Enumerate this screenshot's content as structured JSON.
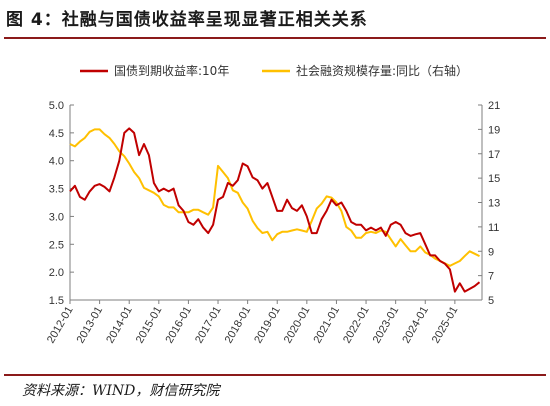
{
  "figure": {
    "title": "图 4：社融与国债收益率呈现显著正相关关系",
    "source": "资料来源：WIND，财信研究院"
  },
  "colors": {
    "series1": "#c00000",
    "series2": "#ffc000",
    "rule": "#8b1a1a",
    "axis": "#7f7f7f"
  },
  "chart_data": {
    "type": "line",
    "title": "",
    "xlabel": "",
    "ylabel_left": "",
    "ylabel_right": "",
    "x_ticks": [
      "2012-01",
      "2013-01",
      "2014-01",
      "2015-01",
      "2016-01",
      "2017-01",
      "2018-01",
      "2019-01",
      "2020-01",
      "2021-01",
      "2022-01",
      "2023-01",
      "2024-01",
      "2025-01"
    ],
    "x_range": [
      "2012-01",
      "2025-12"
    ],
    "y_left": {
      "ticks": [
        "5.0",
        "4.5",
        "4.0",
        "3.5",
        "3.0",
        "2.5",
        "2.0",
        "1.5"
      ],
      "min": 1.5,
      "max": 5.0
    },
    "y_right": {
      "ticks": [
        "21",
        "19",
        "17",
        "15",
        "13",
        "11",
        "9",
        "7",
        "5"
      ],
      "min": 5,
      "max": 21
    },
    "grid": false,
    "legend_position": "top",
    "series": [
      {
        "name": "国债到期收益率:10年",
        "axis": "left",
        "color": "#c00000",
        "points": [
          [
            "2012-01",
            3.45
          ],
          [
            "2012-03",
            3.55
          ],
          [
            "2012-05",
            3.35
          ],
          [
            "2012-07",
            3.3
          ],
          [
            "2012-09",
            3.45
          ],
          [
            "2012-11",
            3.55
          ],
          [
            "2013-01",
            3.58
          ],
          [
            "2013-03",
            3.53
          ],
          [
            "2013-05",
            3.45
          ],
          [
            "2013-07",
            3.7
          ],
          [
            "2013-09",
            4.0
          ],
          [
            "2013-11",
            4.5
          ],
          [
            "2014-01",
            4.58
          ],
          [
            "2014-03",
            4.5
          ],
          [
            "2014-05",
            4.1
          ],
          [
            "2014-07",
            4.3
          ],
          [
            "2014-09",
            4.1
          ],
          [
            "2014-11",
            3.6
          ],
          [
            "2015-01",
            3.45
          ],
          [
            "2015-03",
            3.5
          ],
          [
            "2015-05",
            3.45
          ],
          [
            "2015-07",
            3.5
          ],
          [
            "2015-09",
            3.2
          ],
          [
            "2015-11",
            3.1
          ],
          [
            "2016-01",
            2.9
          ],
          [
            "2016-03",
            2.85
          ],
          [
            "2016-05",
            2.95
          ],
          [
            "2016-07",
            2.8
          ],
          [
            "2016-09",
            2.7
          ],
          [
            "2016-11",
            2.85
          ],
          [
            "2017-01",
            3.3
          ],
          [
            "2017-03",
            3.35
          ],
          [
            "2017-05",
            3.6
          ],
          [
            "2017-07",
            3.55
          ],
          [
            "2017-09",
            3.65
          ],
          [
            "2017-11",
            3.95
          ],
          [
            "2018-01",
            3.9
          ],
          [
            "2018-03",
            3.7
          ],
          [
            "2018-05",
            3.65
          ],
          [
            "2018-07",
            3.5
          ],
          [
            "2018-09",
            3.6
          ],
          [
            "2018-11",
            3.35
          ],
          [
            "2019-01",
            3.1
          ],
          [
            "2019-03",
            3.1
          ],
          [
            "2019-05",
            3.3
          ],
          [
            "2019-07",
            3.15
          ],
          [
            "2019-09",
            3.1
          ],
          [
            "2019-11",
            3.2
          ],
          [
            "2020-01",
            3.0
          ],
          [
            "2020-03",
            2.7
          ],
          [
            "2020-05",
            2.7
          ],
          [
            "2020-07",
            2.95
          ],
          [
            "2020-09",
            3.1
          ],
          [
            "2020-11",
            3.3
          ],
          [
            "2021-01",
            3.2
          ],
          [
            "2021-03",
            3.25
          ],
          [
            "2021-05",
            3.1
          ],
          [
            "2021-07",
            2.9
          ],
          [
            "2021-09",
            2.85
          ],
          [
            "2021-11",
            2.85
          ],
          [
            "2022-01",
            2.75
          ],
          [
            "2022-03",
            2.8
          ],
          [
            "2022-05",
            2.75
          ],
          [
            "2022-07",
            2.8
          ],
          [
            "2022-09",
            2.65
          ],
          [
            "2022-11",
            2.85
          ],
          [
            "2023-01",
            2.9
          ],
          [
            "2023-03",
            2.85
          ],
          [
            "2023-05",
            2.7
          ],
          [
            "2023-07",
            2.65
          ],
          [
            "2023-09",
            2.68
          ],
          [
            "2023-11",
            2.7
          ],
          [
            "2024-01",
            2.5
          ],
          [
            "2024-03",
            2.3
          ],
          [
            "2024-05",
            2.3
          ],
          [
            "2024-07",
            2.2
          ],
          [
            "2024-09",
            2.15
          ],
          [
            "2024-11",
            2.05
          ],
          [
            "2025-01",
            1.65
          ],
          [
            "2025-03",
            1.8
          ],
          [
            "2025-05",
            1.65
          ],
          [
            "2025-07",
            1.7
          ],
          [
            "2025-09",
            1.75
          ],
          [
            "2025-11",
            1.82
          ]
        ]
      },
      {
        "name": "社会融资规模存量:同比（右轴）",
        "axis": "right",
        "color": "#ffc000",
        "points": [
          [
            "2012-01",
            17.8
          ],
          [
            "2012-03",
            17.6
          ],
          [
            "2012-05",
            18.0
          ],
          [
            "2012-07",
            18.3
          ],
          [
            "2012-09",
            18.8
          ],
          [
            "2012-11",
            19.0
          ],
          [
            "2013-01",
            19.0
          ],
          [
            "2013-03",
            18.6
          ],
          [
            "2013-05",
            18.3
          ],
          [
            "2013-07",
            17.8
          ],
          [
            "2013-09",
            17.2
          ],
          [
            "2013-11",
            16.8
          ],
          [
            "2014-01",
            16.2
          ],
          [
            "2014-03",
            15.5
          ],
          [
            "2014-05",
            15.0
          ],
          [
            "2014-07",
            14.2
          ],
          [
            "2014-09",
            14.0
          ],
          [
            "2014-11",
            13.8
          ],
          [
            "2015-01",
            13.5
          ],
          [
            "2015-03",
            12.8
          ],
          [
            "2015-05",
            12.6
          ],
          [
            "2015-07",
            12.6
          ],
          [
            "2015-09",
            12.2
          ],
          [
            "2015-11",
            12.2
          ],
          [
            "2016-01",
            12.2
          ],
          [
            "2016-03",
            12.4
          ],
          [
            "2016-05",
            12.4
          ],
          [
            "2016-07",
            12.2
          ],
          [
            "2016-09",
            12.0
          ],
          [
            "2016-11",
            12.6
          ],
          [
            "2017-01",
            16.0
          ],
          [
            "2017-03",
            15.5
          ],
          [
            "2017-05",
            15.0
          ],
          [
            "2017-07",
            14.0
          ],
          [
            "2017-09",
            13.8
          ],
          [
            "2017-11",
            13.0
          ],
          [
            "2018-01",
            12.5
          ],
          [
            "2018-03",
            11.5
          ],
          [
            "2018-05",
            10.9
          ],
          [
            "2018-07",
            10.5
          ],
          [
            "2018-09",
            10.6
          ],
          [
            "2018-11",
            9.9
          ],
          [
            "2019-01",
            10.4
          ],
          [
            "2019-03",
            10.6
          ],
          [
            "2019-05",
            10.6
          ],
          [
            "2019-07",
            10.7
          ],
          [
            "2019-09",
            10.8
          ],
          [
            "2019-11",
            10.7
          ],
          [
            "2020-01",
            10.6
          ],
          [
            "2020-03",
            11.5
          ],
          [
            "2020-05",
            12.5
          ],
          [
            "2020-07",
            12.9
          ],
          [
            "2020-09",
            13.5
          ],
          [
            "2020-11",
            13.4
          ],
          [
            "2021-01",
            13.0
          ],
          [
            "2021-03",
            12.3
          ],
          [
            "2021-05",
            11.0
          ],
          [
            "2021-07",
            10.7
          ],
          [
            "2021-09",
            10.1
          ],
          [
            "2021-11",
            10.1
          ],
          [
            "2022-01",
            10.5
          ],
          [
            "2022-03",
            10.6
          ],
          [
            "2022-05",
            10.5
          ],
          [
            "2022-07",
            10.7
          ],
          [
            "2022-09",
            10.6
          ],
          [
            "2022-11",
            10.0
          ],
          [
            "2023-01",
            9.4
          ],
          [
            "2023-03",
            10.0
          ],
          [
            "2023-05",
            9.5
          ],
          [
            "2023-07",
            9.0
          ],
          [
            "2023-09",
            9.0
          ],
          [
            "2023-11",
            9.4
          ],
          [
            "2024-01",
            8.9
          ],
          [
            "2024-03",
            8.7
          ],
          [
            "2024-05",
            8.4
          ],
          [
            "2024-07",
            8.2
          ],
          [
            "2024-09",
            8.0
          ],
          [
            "2024-11",
            7.8
          ],
          [
            "2025-01",
            8.0
          ],
          [
            "2025-03",
            8.2
          ],
          [
            "2025-05",
            8.6
          ],
          [
            "2025-07",
            9.0
          ],
          [
            "2025-09",
            8.8
          ],
          [
            "2025-11",
            8.6
          ]
        ]
      }
    ]
  }
}
